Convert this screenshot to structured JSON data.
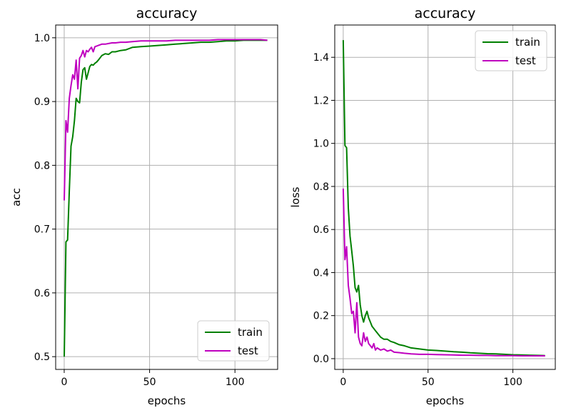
{
  "chart_data": [
    {
      "type": "line",
      "title": "accuracy",
      "xlabel": "epochs",
      "ylabel": "acc",
      "xlim": [
        -5,
        125
      ],
      "ylim": [
        0.48,
        1.02
      ],
      "xticks": [
        0,
        50,
        100
      ],
      "yticks": [
        0.5,
        0.6,
        0.7,
        0.8,
        0.9,
        1.0
      ],
      "ytick_labels": [
        "0.5",
        "0.6",
        "0.7",
        "0.8",
        "0.9",
        "1.0"
      ],
      "grid": true,
      "legend": {
        "position": "lower-right"
      },
      "series": [
        {
          "name": "train",
          "color": "#008000",
          "x": [
            0,
            1,
            2,
            3,
            4,
            5,
            6,
            7,
            8,
            9,
            10,
            11,
            12,
            13,
            14,
            15,
            16,
            17,
            18,
            19,
            20,
            22,
            24,
            26,
            28,
            30,
            33,
            36,
            40,
            45,
            50,
            55,
            60,
            65,
            70,
            75,
            80,
            85,
            90,
            95,
            100,
            105,
            110,
            115,
            119
          ],
          "y": [
            0.5,
            0.68,
            0.683,
            0.76,
            0.83,
            0.845,
            0.87,
            0.905,
            0.9,
            0.898,
            0.93,
            0.95,
            0.953,
            0.935,
            0.945,
            0.955,
            0.958,
            0.957,
            0.96,
            0.962,
            0.965,
            0.972,
            0.975,
            0.974,
            0.978,
            0.978,
            0.98,
            0.981,
            0.985,
            0.986,
            0.987,
            0.988,
            0.989,
            0.99,
            0.991,
            0.992,
            0.993,
            0.993,
            0.994,
            0.995,
            0.995,
            0.996,
            0.996,
            0.996,
            0.996
          ]
        },
        {
          "name": "test",
          "color": "#bf00bf",
          "x": [
            0,
            1,
            2,
            3,
            4,
            5,
            6,
            7,
            8,
            9,
            10,
            11,
            12,
            13,
            14,
            15,
            16,
            17,
            18,
            19,
            20,
            22,
            24,
            26,
            28,
            30,
            33,
            36,
            40,
            45,
            50,
            55,
            60,
            65,
            70,
            75,
            80,
            85,
            90,
            95,
            100,
            105,
            110,
            115,
            119
          ],
          "y": [
            0.745,
            0.87,
            0.852,
            0.905,
            0.925,
            0.942,
            0.935,
            0.965,
            0.92,
            0.968,
            0.972,
            0.98,
            0.97,
            0.98,
            0.978,
            0.982,
            0.985,
            0.978,
            0.986,
            0.987,
            0.988,
            0.99,
            0.99,
            0.991,
            0.992,
            0.992,
            0.993,
            0.993,
            0.994,
            0.995,
            0.995,
            0.995,
            0.995,
            0.996,
            0.996,
            0.996,
            0.996,
            0.996,
            0.997,
            0.997,
            0.997,
            0.997,
            0.997,
            0.997,
            0.996
          ]
        }
      ]
    },
    {
      "type": "line",
      "title": "accuracy",
      "xlabel": "epochs",
      "ylabel": "loss",
      "xlim": [
        -5,
        125
      ],
      "ylim": [
        -0.05,
        1.55
      ],
      "xticks": [
        0,
        50,
        100
      ],
      "yticks": [
        0.0,
        0.2,
        0.4,
        0.6,
        0.8,
        1.0,
        1.2,
        1.4
      ],
      "ytick_labels": [
        "0.0",
        "0.2",
        "0.4",
        "0.6",
        "0.8",
        "1.0",
        "1.2",
        "1.4"
      ],
      "grid": true,
      "legend": {
        "position": "upper-right"
      },
      "series": [
        {
          "name": "train",
          "color": "#008000",
          "x": [
            0,
            1,
            2,
            3,
            4,
            5,
            6,
            7,
            8,
            9,
            10,
            11,
            12,
            13,
            14,
            15,
            16,
            17,
            18,
            19,
            20,
            22,
            24,
            26,
            28,
            30,
            33,
            36,
            40,
            45,
            50,
            55,
            60,
            65,
            70,
            75,
            80,
            85,
            90,
            95,
            100,
            105,
            110,
            115,
            119
          ],
          "y": [
            1.48,
            0.99,
            0.98,
            0.7,
            0.57,
            0.5,
            0.43,
            0.33,
            0.31,
            0.34,
            0.25,
            0.2,
            0.17,
            0.2,
            0.22,
            0.19,
            0.17,
            0.15,
            0.14,
            0.13,
            0.12,
            0.1,
            0.09,
            0.09,
            0.08,
            0.075,
            0.065,
            0.06,
            0.05,
            0.045,
            0.04,
            0.038,
            0.035,
            0.032,
            0.03,
            0.027,
            0.025,
            0.023,
            0.022,
            0.02,
            0.018,
            0.017,
            0.016,
            0.015,
            0.014
          ]
        },
        {
          "name": "test",
          "color": "#bf00bf",
          "x": [
            0,
            1,
            2,
            3,
            4,
            5,
            6,
            7,
            8,
            9,
            10,
            11,
            12,
            13,
            14,
            15,
            16,
            17,
            18,
            19,
            20,
            22,
            24,
            26,
            28,
            30,
            33,
            36,
            40,
            45,
            50,
            55,
            60,
            65,
            70,
            75,
            80,
            85,
            90,
            95,
            100,
            105,
            110,
            115,
            119
          ],
          "y": [
            0.79,
            0.46,
            0.52,
            0.34,
            0.28,
            0.21,
            0.22,
            0.12,
            0.26,
            0.1,
            0.07,
            0.06,
            0.12,
            0.08,
            0.1,
            0.07,
            0.06,
            0.05,
            0.07,
            0.04,
            0.05,
            0.04,
            0.045,
            0.035,
            0.04,
            0.03,
            0.028,
            0.025,
            0.022,
            0.02,
            0.02,
            0.019,
            0.018,
            0.017,
            0.016,
            0.016,
            0.015,
            0.015,
            0.014,
            0.014,
            0.014,
            0.013,
            0.013,
            0.013,
            0.013
          ]
        }
      ]
    }
  ]
}
